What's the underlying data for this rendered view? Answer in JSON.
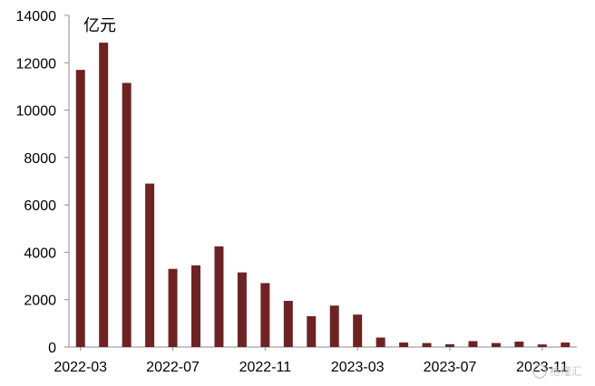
{
  "chart_data": {
    "type": "bar",
    "ylabel": "亿元",
    "ylim": [
      0,
      14000
    ],
    "yticks": [
      0,
      2000,
      4000,
      6000,
      8000,
      10000,
      12000,
      14000
    ],
    "xtick_labels": [
      "2022-03",
      "2022-07",
      "2022-11",
      "2023-03",
      "2023-07",
      "2023-11"
    ],
    "categories": [
      "2022-03",
      "2022-04",
      "2022-05",
      "2022-06",
      "2022-07",
      "2022-08",
      "2022-09",
      "2022-10",
      "2022-11",
      "2022-12",
      "2023-01",
      "2023-02",
      "2023-03",
      "2023-04",
      "2023-05",
      "2023-06",
      "2023-07",
      "2023-08",
      "2023-09",
      "2023-10",
      "2023-11",
      "2023-12"
    ],
    "values": [
      11700,
      12850,
      11150,
      6900,
      3300,
      3450,
      4250,
      3150,
      2700,
      1950,
      1300,
      1750,
      1370,
      400,
      190,
      170,
      120,
      250,
      170,
      230,
      110,
      190
    ],
    "bar_color": "#6e2323",
    "grid": false
  },
  "watermark": "格隆汇"
}
